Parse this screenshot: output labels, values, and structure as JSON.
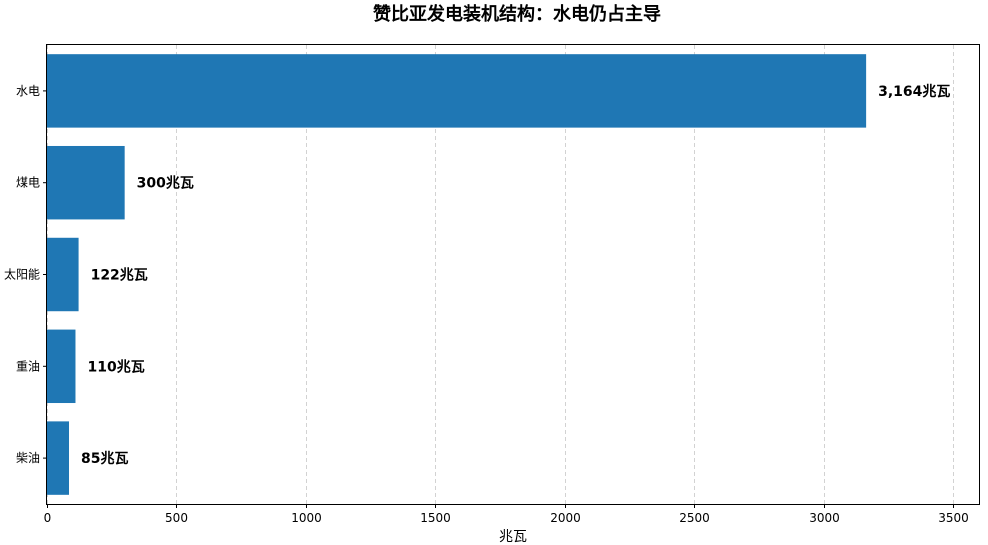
{
  "chart_data": {
    "type": "bar",
    "orientation": "horizontal",
    "title": "赞比亚发电装机结构：水电仍占主导",
    "xlabel": "兆瓦",
    "ylabel": "",
    "categories": [
      "水电",
      "煤电",
      "太阳能",
      "重油",
      "柴油"
    ],
    "values": [
      3164,
      300,
      122,
      110,
      85
    ],
    "data_labels": [
      "3,164兆瓦",
      "300兆瓦",
      "122兆瓦",
      "110兆瓦",
      "85兆瓦"
    ],
    "xlim": [
      0,
      3600
    ],
    "xticks": [
      0,
      500,
      1000,
      1500,
      2000,
      2500,
      3000,
      3500
    ],
    "grid": "x dashed",
    "bar_color": "#1f77b4"
  }
}
